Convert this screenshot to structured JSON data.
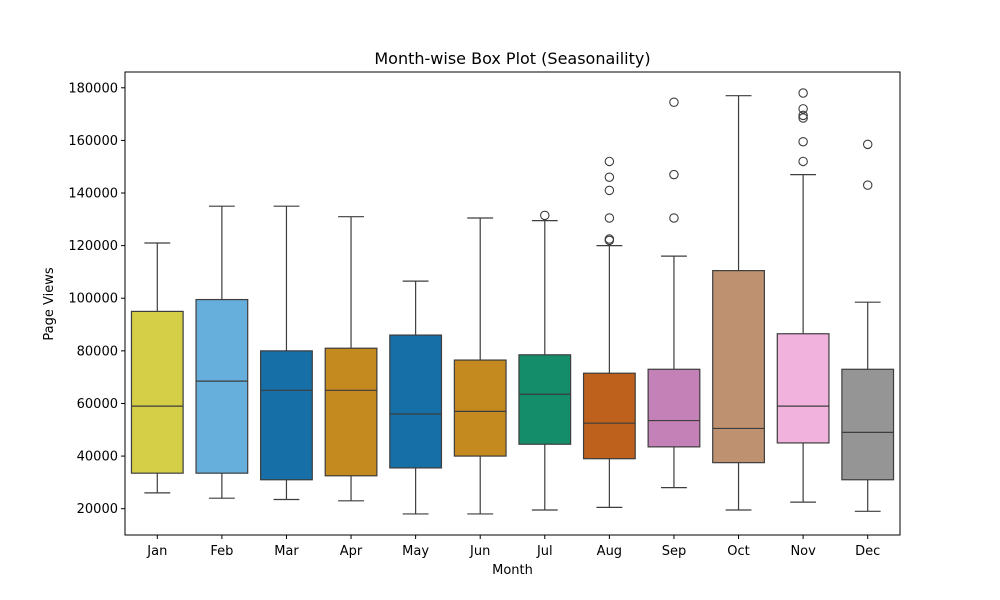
{
  "chart_data": {
    "type": "box",
    "title": "Month-wise Box Plot (Seasonaility)",
    "xlabel": "Month",
    "ylabel": "Page Views",
    "ylim": [
      10000,
      186000
    ],
    "yticks": [
      20000,
      40000,
      60000,
      80000,
      100000,
      120000,
      140000,
      160000,
      180000
    ],
    "grid": false,
    "categories": [
      "Jan",
      "Feb",
      "Mar",
      "Apr",
      "May",
      "Jun",
      "Jul",
      "Aug",
      "Sep",
      "Oct",
      "Nov",
      "Dec"
    ],
    "colors": [
      "#d5cf47",
      "#66aedb",
      "#166fa6",
      "#c48a20",
      "#166fa6",
      "#c48a20",
      "#148d6a",
      "#bd611d",
      "#c381b7",
      "#be9270",
      "#f1b2dd",
      "#959595"
    ],
    "boxes": [
      {
        "whislo": 26000,
        "q1": 33500,
        "med": 59000,
        "q3": 95000,
        "whishi": 121000,
        "fliers": []
      },
      {
        "whislo": 24000,
        "q1": 33500,
        "med": 68500,
        "q3": 99500,
        "whishi": 135000,
        "fliers": []
      },
      {
        "whislo": 23500,
        "q1": 31000,
        "med": 65000,
        "q3": 80000,
        "whishi": 135000,
        "fliers": []
      },
      {
        "whislo": 23000,
        "q1": 32500,
        "med": 65000,
        "q3": 81000,
        "whishi": 131000,
        "fliers": []
      },
      {
        "whislo": 18000,
        "q1": 35500,
        "med": 56000,
        "q3": 86000,
        "whishi": 106500,
        "fliers": []
      },
      {
        "whislo": 18000,
        "q1": 40000,
        "med": 57000,
        "q3": 76500,
        "whishi": 130500,
        "fliers": []
      },
      {
        "whislo": 19500,
        "q1": 44500,
        "med": 63500,
        "q3": 78500,
        "whishi": 129500,
        "fliers": [
          131500
        ]
      },
      {
        "whislo": 20500,
        "q1": 39000,
        "med": 52500,
        "q3": 71500,
        "whishi": 120000,
        "fliers": [
          122000,
          122500,
          130500,
          141000,
          146000,
          152000
        ]
      },
      {
        "whislo": 28000,
        "q1": 43500,
        "med": 53500,
        "q3": 73000,
        "whishi": 116000,
        "fliers": [
          130500,
          147000,
          174500
        ]
      },
      {
        "whislo": 19500,
        "q1": 37500,
        "med": 50500,
        "q3": 110500,
        "whishi": 177000,
        "fliers": []
      },
      {
        "whislo": 22500,
        "q1": 45000,
        "med": 59000,
        "q3": 86500,
        "whishi": 147000,
        "fliers": [
          152000,
          159500,
          168500,
          169500,
          172000,
          178000
        ]
      },
      {
        "whislo": 19000,
        "q1": 31000,
        "med": 49000,
        "q3": 73000,
        "whishi": 98500,
        "fliers": [
          143000,
          158500
        ]
      }
    ]
  }
}
